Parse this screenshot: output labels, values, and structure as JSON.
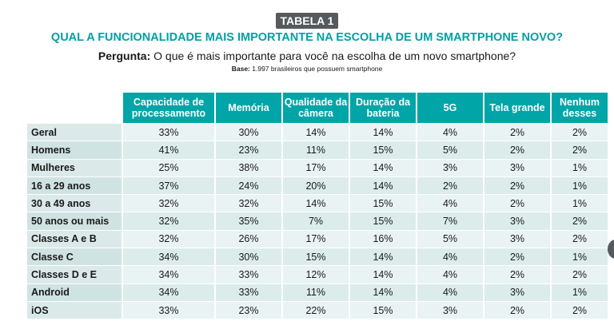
{
  "badge": "TABELA 1",
  "title": "QUAL A FUNCIONALIDADE MAIS IMPORTANTE NA ESCOLHA DE UM SMARTPHONE NOVO?",
  "question": {
    "label": "Pergunta:",
    "text": " O que é mais importante para você na escolha de um novo smartphone?"
  },
  "base": {
    "label": "Base:",
    "text": " 1.997 brasileiros que possuem smartphone"
  },
  "columns": [
    "Capacidade de processamento",
    "Memória",
    "Qualidade da câmera",
    "Duração da bateria",
    "5G",
    "Tela grande",
    "Nenhum desses"
  ],
  "rows": [
    {
      "label": "Geral",
      "values": [
        "33%",
        "30%",
        "14%",
        "14%",
        "4%",
        "2%",
        "2%"
      ]
    },
    {
      "label": "Homens",
      "values": [
        "41%",
        "23%",
        "11%",
        "15%",
        "5%",
        "2%",
        "2%"
      ]
    },
    {
      "label": "Mulheres",
      "values": [
        "25%",
        "38%",
        "17%",
        "14%",
        "3%",
        "3%",
        "1%"
      ]
    },
    {
      "label": "16 a 29 anos",
      "values": [
        "37%",
        "24%",
        "20%",
        "14%",
        "2%",
        "2%",
        "1%"
      ]
    },
    {
      "label": "30 a 49 anos",
      "values": [
        "32%",
        "32%",
        "14%",
        "15%",
        "4%",
        "2%",
        "1%"
      ]
    },
    {
      "label": "50 anos ou mais",
      "values": [
        "32%",
        "35%",
        "7%",
        "15%",
        "7%",
        "3%",
        "2%"
      ]
    },
    {
      "label": "Classes A e B",
      "values": [
        "32%",
        "26%",
        "17%",
        "16%",
        "5%",
        "3%",
        "2%"
      ]
    },
    {
      "label": "Classe C",
      "values": [
        "34%",
        "30%",
        "15%",
        "14%",
        "4%",
        "2%",
        "1%"
      ]
    },
    {
      "label": "Classes D e E",
      "values": [
        "34%",
        "33%",
        "12%",
        "14%",
        "4%",
        "2%",
        "2%"
      ]
    },
    {
      "label": "Android",
      "values": [
        "34%",
        "33%",
        "11%",
        "14%",
        "4%",
        "3%",
        "1%"
      ]
    },
    {
      "label": "iOS",
      "values": [
        "33%",
        "23%",
        "22%",
        "15%",
        "3%",
        "2%",
        "2%"
      ]
    }
  ]
}
